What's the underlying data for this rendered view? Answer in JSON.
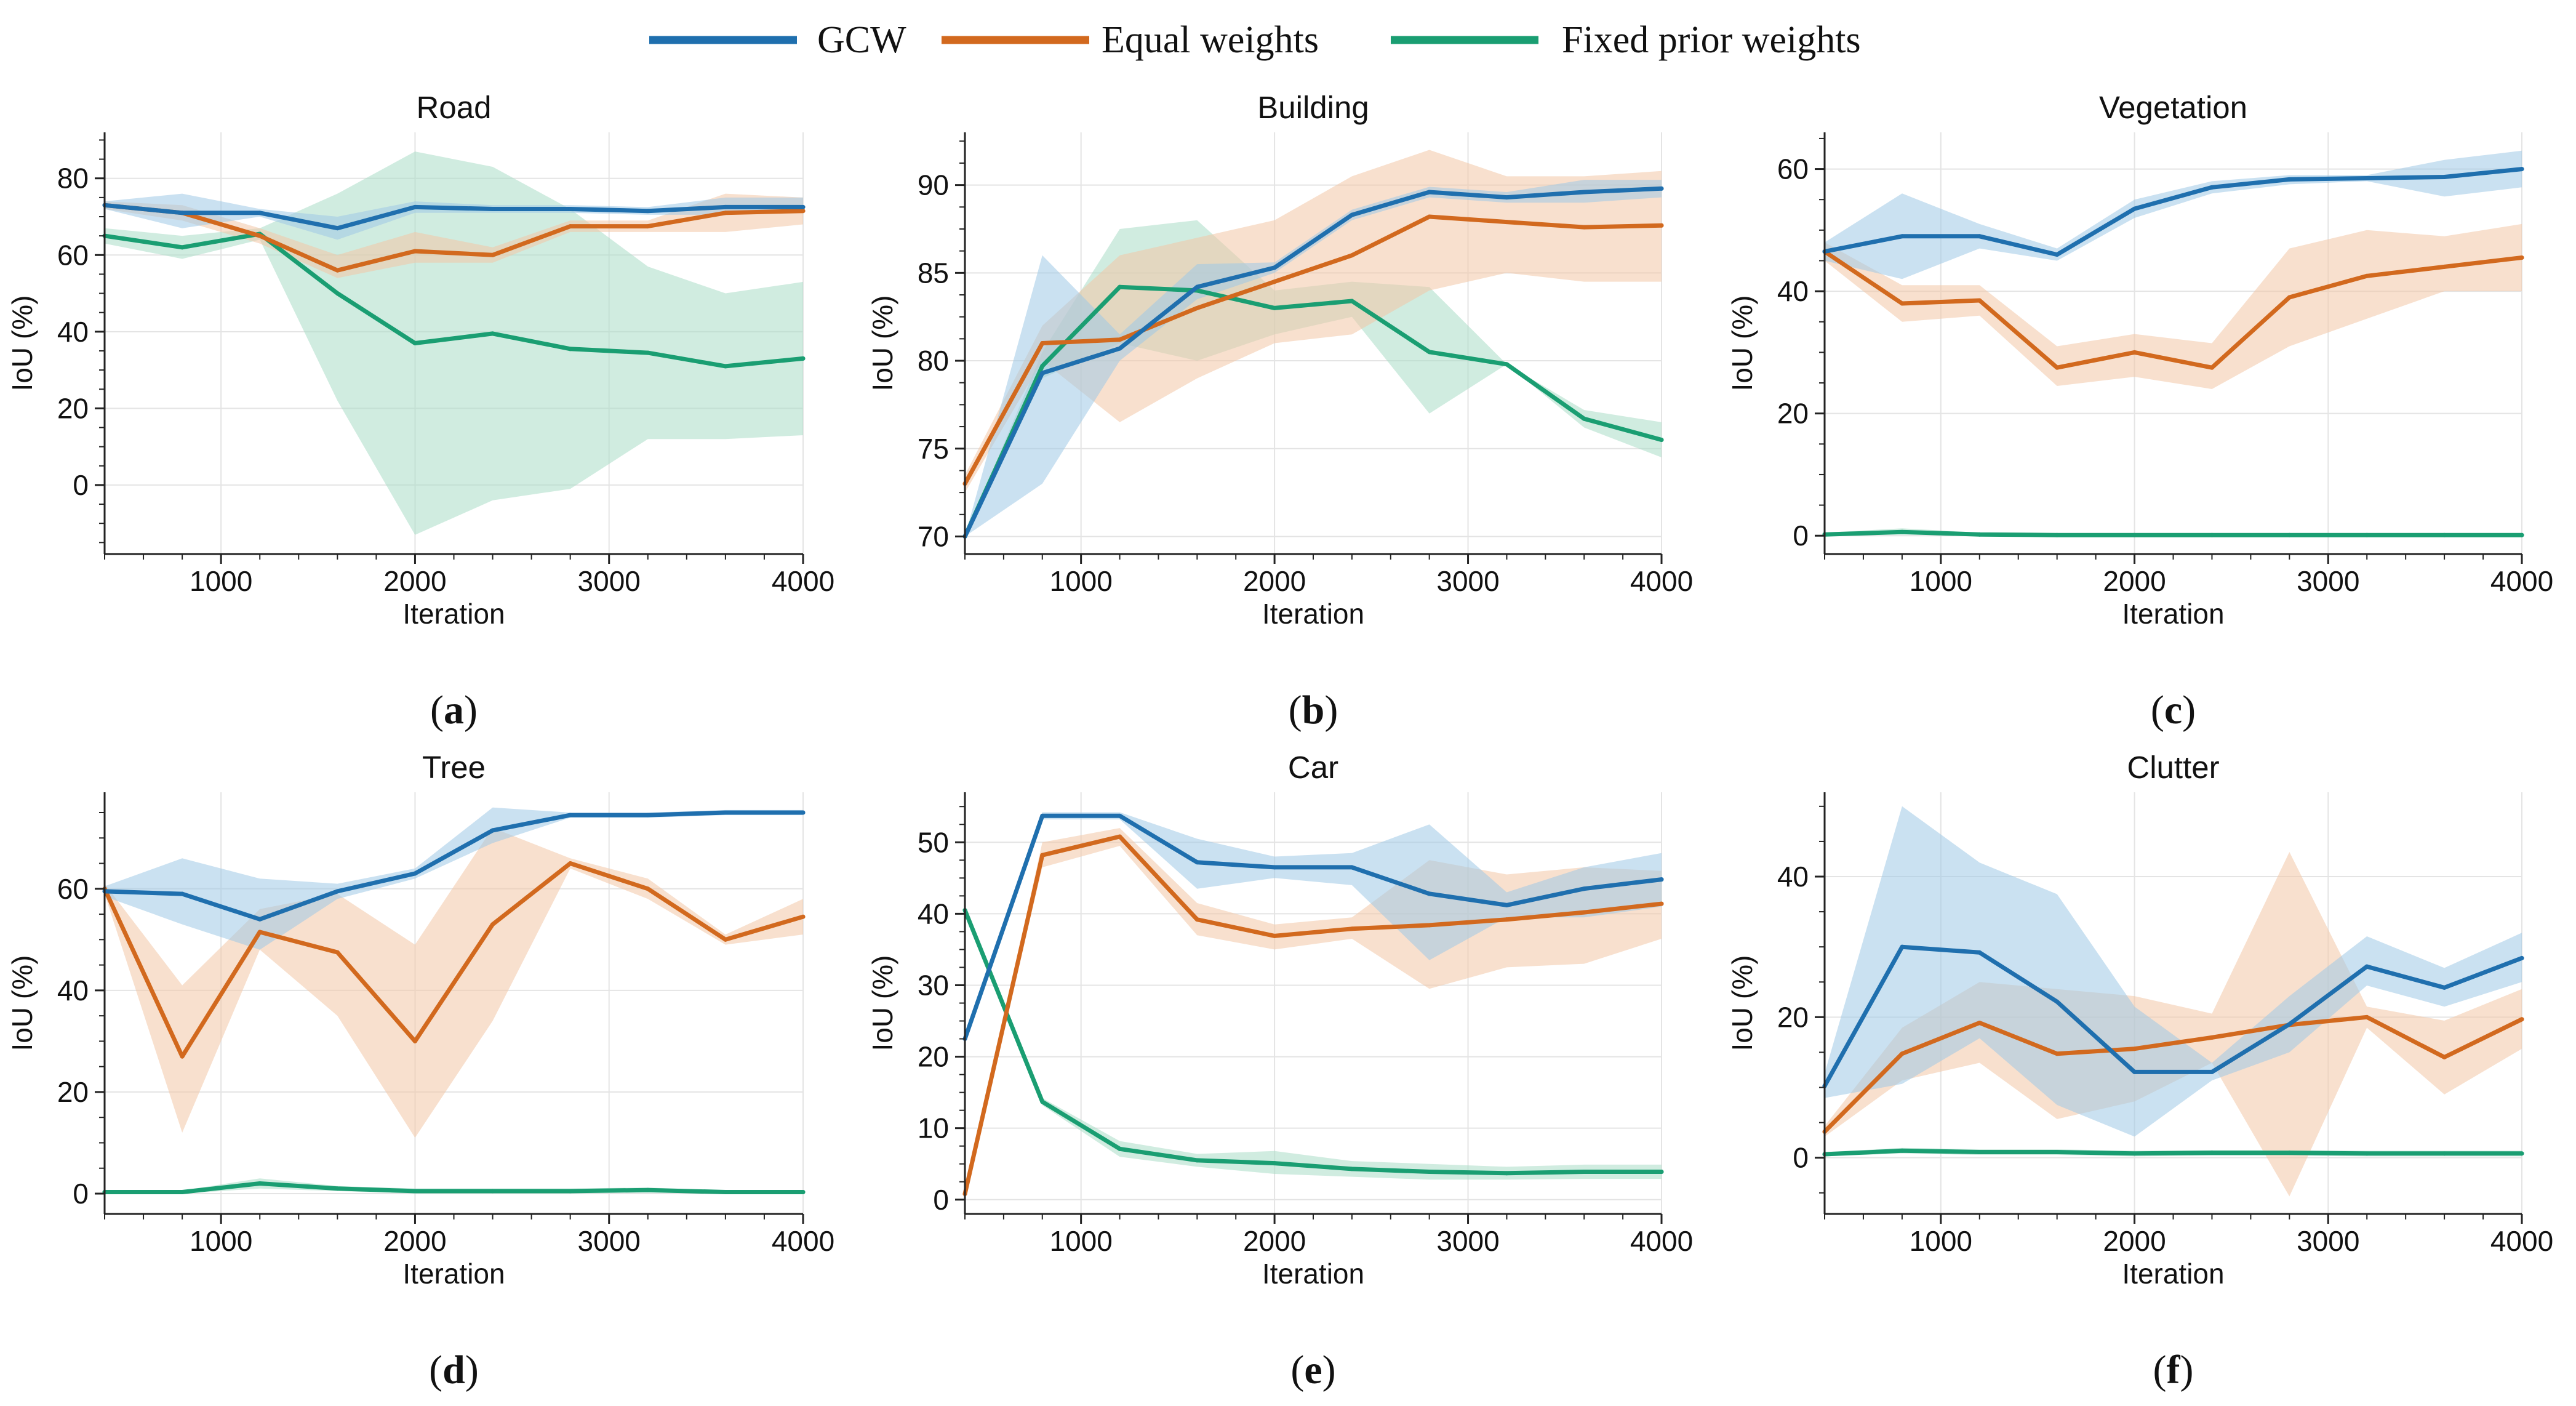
{
  "colors": {
    "gcw": "#1f6fae",
    "equal": "#d2691e",
    "fixed": "#1a9e72",
    "gcw_band": "#9ec8e6",
    "equal_band": "#f3c6a6",
    "fixed_band": "#a9dcc6",
    "grid": "#e4e4e4"
  },
  "legend": {
    "items": [
      {
        "key": "gcw",
        "label": "GCW"
      },
      {
        "key": "equal",
        "label": "Equal weights"
      },
      {
        "key": "fixed",
        "label": "Fixed prior weights"
      }
    ]
  },
  "chart_data": [
    {
      "type": "line",
      "panel": "(a)",
      "title": "Road",
      "xlabel": "Iteration",
      "ylabel": "IoU (%)",
      "xlim": [
        400,
        4000
      ],
      "ylim": [
        -18,
        92
      ],
      "xticks": [
        1000,
        2000,
        3000,
        4000
      ],
      "yticks": [
        0,
        20,
        40,
        60,
        80
      ],
      "x": [
        400,
        800,
        1200,
        1600,
        2000,
        2400,
        2800,
        3200,
        3600,
        4000
      ],
      "series": [
        {
          "name": "GCW",
          "key": "gcw",
          "values": [
            73,
            71,
            71,
            67,
            72.5,
            72,
            72,
            71.5,
            72.5,
            72.5
          ],
          "lower": [
            72,
            67,
            70,
            64,
            71,
            71,
            71,
            70.5,
            70.5,
            71
          ],
          "upper": [
            74,
            76,
            72,
            70,
            74,
            73,
            73,
            72.5,
            75,
            75
          ]
        },
        {
          "name": "Equal weights",
          "key": "equal",
          "values": [
            73,
            71,
            65,
            56,
            61,
            60,
            67.5,
            67.5,
            71,
            71.5
          ],
          "lower": [
            72,
            69,
            63,
            54,
            58,
            58,
            66,
            66,
            66,
            68
          ],
          "upper": [
            74,
            73,
            67,
            60,
            66,
            62,
            69,
            69,
            76,
            75
          ]
        },
        {
          "name": "Fixed prior weights",
          "key": "fixed",
          "values": [
            65,
            62,
            65.5,
            50,
            37,
            39.5,
            35.5,
            34.5,
            31,
            33
          ],
          "lower": [
            63,
            59,
            64,
            22,
            -13,
            -4,
            -1,
            12,
            12,
            13
          ],
          "upper": [
            67,
            65,
            67,
            76,
            87,
            83,
            72,
            57,
            50,
            53
          ]
        }
      ]
    },
    {
      "type": "line",
      "panel": "(b)",
      "title": "Building",
      "xlabel": "Iteration",
      "ylabel": "IoU (%)",
      "xlim": [
        400,
        4000
      ],
      "ylim": [
        69,
        93
      ],
      "xticks": [
        1000,
        2000,
        3000,
        4000
      ],
      "yticks": [
        70,
        75,
        80,
        85,
        90
      ],
      "x": [
        400,
        800,
        1200,
        1600,
        2000,
        2400,
        2800,
        3200,
        3600,
        4000
      ],
      "series": [
        {
          "name": "GCW",
          "key": "gcw",
          "values": [
            70,
            79.3,
            80.7,
            84.2,
            85.3,
            88.3,
            89.6,
            89.3,
            89.6,
            89.8
          ],
          "lower": [
            70,
            73,
            80,
            83.5,
            85,
            88,
            89.3,
            89,
            89,
            89.3
          ],
          "upper": [
            70,
            86,
            81.5,
            85.5,
            85.6,
            88.6,
            89.9,
            89.6,
            90.3,
            90.3
          ]
        },
        {
          "name": "Equal weights",
          "key": "equal",
          "values": [
            73,
            81,
            81.2,
            83,
            84.5,
            86,
            88.2,
            87.9,
            87.6,
            87.7
          ],
          "lower": [
            72.5,
            80,
            76.5,
            79,
            81,
            81.5,
            84,
            85,
            84.5,
            84.5
          ],
          "upper": [
            73.5,
            82,
            86,
            87,
            88,
            90.5,
            92,
            90.5,
            90.5,
            90.8
          ]
        },
        {
          "name": "Fixed prior weights",
          "key": "fixed",
          "values": [
            70,
            79.7,
            84.2,
            84,
            83,
            83.4,
            80.5,
            79.8,
            76.7,
            75.5
          ],
          "lower": [
            70,
            79,
            81,
            80,
            81.5,
            82.5,
            77,
            79.8,
            76.2,
            74.5
          ],
          "upper": [
            70,
            80.5,
            87.5,
            88,
            84,
            84.5,
            84.2,
            79.8,
            77.2,
            76.5
          ]
        }
      ]
    },
    {
      "type": "line",
      "panel": "(c)",
      "title": "Vegetation",
      "xlabel": "Iteration",
      "ylabel": "IoU (%)",
      "xlim": [
        400,
        4000
      ],
      "ylim": [
        -3,
        66
      ],
      "xticks": [
        1000,
        2000,
        3000,
        4000
      ],
      "yticks": [
        0,
        20,
        40,
        60
      ],
      "x": [
        400,
        800,
        1200,
        1600,
        2000,
        2400,
        2800,
        3200,
        3600,
        4000
      ],
      "series": [
        {
          "name": "GCW",
          "key": "gcw",
          "values": [
            46.5,
            49,
            49,
            46,
            53.5,
            57,
            58.3,
            58.5,
            58.7,
            60
          ],
          "lower": [
            45,
            42,
            47,
            45,
            52,
            56,
            57.5,
            58,
            55.5,
            57
          ],
          "upper": [
            48,
            56,
            51,
            47,
            55,
            58,
            59,
            59,
            61.5,
            63
          ]
        },
        {
          "name": "Equal weights",
          "key": "equal",
          "values": [
            46.5,
            38,
            38.5,
            27.5,
            30,
            27.5,
            39,
            42.5,
            44,
            45.5
          ],
          "lower": [
            45,
            35,
            36,
            24.5,
            26,
            24,
            31,
            35.5,
            40,
            40
          ],
          "upper": [
            48,
            41,
            41,
            31,
            33,
            31.5,
            47,
            50,
            49,
            51
          ]
        },
        {
          "name": "Fixed prior weights",
          "key": "fixed",
          "values": [
            0.2,
            0.6,
            0.2,
            0.1,
            0.1,
            0.1,
            0.1,
            0.1,
            0.1,
            0.1
          ],
          "lower": [
            0,
            0.2,
            0,
            0,
            0,
            0,
            0,
            0,
            0,
            0
          ],
          "upper": [
            0.5,
            1.2,
            0.5,
            0.3,
            0.3,
            0.3,
            0.3,
            0.3,
            0.3,
            0.3
          ]
        }
      ]
    },
    {
      "type": "line",
      "panel": "(d)",
      "title": "Tree",
      "xlabel": "Iteration",
      "ylabel": "IoU (%)",
      "xlim": [
        400,
        4000
      ],
      "ylim": [
        -4,
        79
      ],
      "xticks": [
        1000,
        2000,
        3000,
        4000
      ],
      "yticks": [
        0,
        20,
        40,
        60
      ],
      "x": [
        400,
        800,
        1200,
        1600,
        2000,
        2400,
        2800,
        3200,
        3600,
        4000
      ],
      "series": [
        {
          "name": "GCW",
          "key": "gcw",
          "values": [
            59.5,
            59,
            54,
            59.5,
            63,
            71.5,
            74.5,
            74.5,
            75,
            75
          ],
          "lower": [
            58.5,
            53,
            48,
            58,
            62,
            69,
            74,
            74,
            74.5,
            74.5
          ],
          "upper": [
            60.5,
            66,
            62,
            61,
            64,
            76,
            75,
            75,
            75.5,
            75.5
          ]
        },
        {
          "name": "Equal weights",
          "key": "equal",
          "values": [
            60,
            27,
            51.5,
            47.5,
            30,
            53,
            65,
            60,
            50,
            54.5
          ],
          "lower": [
            59,
            12,
            48,
            35,
            11,
            34,
            64,
            58,
            49,
            51
          ],
          "upper": [
            61,
            41,
            56,
            59,
            49,
            72,
            66,
            62,
            51,
            58
          ]
        },
        {
          "name": "Fixed prior weights",
          "key": "fixed",
          "values": [
            0.3,
            0.3,
            2,
            1,
            0.5,
            0.5,
            0.5,
            0.7,
            0.3,
            0.3
          ],
          "lower": [
            0,
            0,
            1,
            0.5,
            0,
            0,
            0,
            0.2,
            0,
            0
          ],
          "upper": [
            0.6,
            0.6,
            3,
            1.5,
            1,
            1,
            1,
            1.2,
            0.6,
            0.6
          ]
        }
      ]
    },
    {
      "type": "line",
      "panel": "(e)",
      "title": "Car",
      "xlabel": "Iteration",
      "ylabel": "IoU (%)",
      "xlim": [
        400,
        4000
      ],
      "ylim": [
        -2,
        57
      ],
      "xticks": [
        1000,
        2000,
        3000,
        4000
      ],
      "yticks": [
        0,
        10,
        20,
        30,
        40,
        50
      ],
      "x": [
        400,
        800,
        1200,
        1600,
        2000,
        2400,
        2800,
        3200,
        3600,
        4000
      ],
      "series": [
        {
          "name": "GCW",
          "key": "gcw",
          "values": [
            22.5,
            53.7,
            53.7,
            47.2,
            46.5,
            46.5,
            42.8,
            41.2,
            43.5,
            44.8
          ],
          "lower": [
            22.5,
            53.2,
            53.2,
            43.5,
            45,
            44,
            33.5,
            39.5,
            39.5,
            41
          ],
          "upper": [
            22.5,
            54.2,
            54.2,
            50.5,
            48,
            48.5,
            52.5,
            43,
            46.5,
            48.5
          ]
        },
        {
          "name": "Equal weights",
          "key": "equal",
          "values": [
            0.8,
            48.2,
            50.8,
            39.2,
            36.9,
            37.9,
            38.4,
            39.2,
            40.2,
            41.4
          ],
          "lower": [
            0.8,
            46.5,
            49.5,
            37,
            35,
            36.5,
            29.5,
            32.5,
            33,
            36.5
          ],
          "upper": [
            0.8,
            50,
            52,
            41.5,
            38.5,
            39.5,
            47.5,
            45.5,
            46.5,
            46
          ]
        },
        {
          "name": "Fixed prior weights",
          "key": "fixed",
          "values": [
            40.5,
            13.7,
            7.1,
            5.5,
            5.1,
            4.3,
            3.9,
            3.7,
            3.9,
            3.9
          ],
          "lower": [
            40.5,
            13.2,
            6,
            4.6,
            3.6,
            3.2,
            2.8,
            2.8,
            2.9,
            2.9
          ],
          "upper": [
            40.5,
            14.2,
            8.2,
            6.4,
            6.8,
            5.4,
            5,
            4.6,
            4.9,
            4.9
          ]
        }
      ]
    },
    {
      "type": "line",
      "panel": "(f)",
      "title": "Clutter",
      "xlabel": "Iteration",
      "ylabel": "IoU (%)",
      "xlim": [
        400,
        4000
      ],
      "ylim": [
        -8,
        52
      ],
      "xticks": [
        1000,
        2000,
        3000,
        4000
      ],
      "yticks": [
        0,
        20,
        40
      ],
      "x": [
        400,
        800,
        1200,
        1600,
        2000,
        2400,
        2800,
        3200,
        3600,
        4000
      ],
      "series": [
        {
          "name": "GCW",
          "key": "gcw",
          "values": [
            10.2,
            30,
            29.2,
            22.2,
            12.2,
            12.2,
            19,
            27.2,
            24.2,
            28.4
          ],
          "lower": [
            8.5,
            10.5,
            17,
            7.5,
            3,
            11,
            15,
            24.5,
            21.5,
            25
          ],
          "upper": [
            12,
            50,
            42,
            37.5,
            21.5,
            13.5,
            23,
            31.5,
            27,
            32
          ]
        },
        {
          "name": "Equal weights",
          "key": "equal",
          "values": [
            3.7,
            14.8,
            19.2,
            14.8,
            15.5,
            17.1,
            18.9,
            20,
            14.3,
            19.7
          ],
          "lower": [
            3,
            11,
            13.5,
            5.5,
            8,
            13.5,
            -5.5,
            18.5,
            9,
            15.5
          ],
          "upper": [
            4.5,
            18.5,
            25,
            24,
            23,
            20.5,
            43.5,
            21.5,
            19.5,
            24
          ]
        },
        {
          "name": "Fixed prior weights",
          "key": "fixed",
          "values": [
            0.5,
            1,
            0.8,
            0.8,
            0.6,
            0.7,
            0.7,
            0.6,
            0.6,
            0.6
          ],
          "lower": [
            0.2,
            0.6,
            0.4,
            0.4,
            0.2,
            0.3,
            0.3,
            0.2,
            0.2,
            0.2
          ],
          "upper": [
            0.8,
            1.4,
            1.2,
            1.2,
            1,
            1.1,
            1.1,
            1,
            1,
            1
          ]
        }
      ]
    }
  ]
}
